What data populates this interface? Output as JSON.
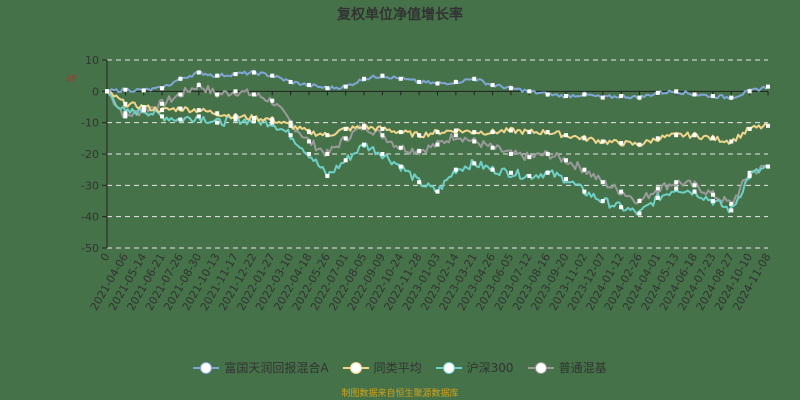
{
  "title": "复权单位净值增长率",
  "footer": "制图数据来自恒生聚源数据库",
  "y_unit": "%",
  "colors": {
    "background": "#457248",
    "fund": "#7fa6d6",
    "peer_avg": "#f0d58a",
    "csi300": "#6fd0c8",
    "mixed": "#9a9a9a",
    "grid": "#e8e8e8",
    "axis": "#222222",
    "unit": "#c0282d"
  },
  "legend": [
    {
      "label": "富国天润回报混合A",
      "color": "#7fa6d6"
    },
    {
      "label": "同类平均",
      "color": "#f0d58a"
    },
    {
      "label": "沪深300",
      "color": "#6fd0c8"
    },
    {
      "label": "普通混基",
      "color": "#9a9a9a"
    }
  ],
  "chart_data": {
    "type": "line",
    "title": "复权单位净值增长率",
    "xlabel": "",
    "ylabel": "%",
    "ylim": [
      -50,
      10
    ],
    "yticks": [
      10,
      0,
      -10,
      -20,
      -30,
      -40,
      -50
    ],
    "grid": true,
    "legend_position": "bottom",
    "categories": [
      "0",
      "2021-04-06",
      "2021-05-14",
      "2021-06-21",
      "2021-07-26",
      "2021-08-30",
      "2021-10-13",
      "2021-11-17",
      "2021-12-22",
      "2022-01-27",
      "2022-03-10",
      "2022-04-18",
      "2022-05-26",
      "2022-07-01",
      "2022-08-05",
      "2022-09-09",
      "2022-10-24",
      "2022-11-28",
      "2023-01-03",
      "2023-02-14",
      "2023-03-21",
      "2023-04-26",
      "2023-06-05",
      "2023-07-12",
      "2023-08-16",
      "2023-09-20",
      "2023-11-02",
      "2023-12-07",
      "2024-01-12",
      "2024-02-26",
      "2024-04-01",
      "2024-05-13",
      "2024-06-18",
      "2024-07-23",
      "2024-08-27",
      "2024-10-10",
      "2024-11-08"
    ],
    "series": [
      {
        "name": "富国天润回报混合A",
        "values": [
          0,
          0.5,
          0.3,
          1,
          4,
          6,
          5,
          5.5,
          6,
          5,
          3,
          2,
          1,
          1.5,
          4,
          5,
          4,
          3,
          2.5,
          3,
          4,
          2,
          1,
          0,
          -1,
          -1.5,
          -1,
          -2,
          -1.5,
          -2,
          -0.5,
          0,
          -1,
          -1.5,
          -2,
          0,
          1.5
        ]
      },
      {
        "name": "同类平均",
        "values": [
          0,
          -4,
          -5,
          -6,
          -5.5,
          -6,
          -7,
          -8,
          -8.5,
          -9,
          -11,
          -13,
          -14,
          -12,
          -11.5,
          -12,
          -13,
          -14,
          -13,
          -12.5,
          -13,
          -13,
          -12.5,
          -13,
          -13,
          -14,
          -15,
          -16,
          -16.5,
          -17,
          -15,
          -14,
          -14,
          -15,
          -16,
          -12,
          -11
        ]
      },
      {
        "name": "沪深300",
        "values": [
          0,
          -7,
          -6,
          -8,
          -9,
          -8,
          -10,
          -9,
          -9.5,
          -10,
          -14,
          -20,
          -27,
          -22,
          -17,
          -20,
          -24,
          -29,
          -32,
          -25,
          -23,
          -25,
          -26,
          -27,
          -26,
          -28,
          -32,
          -35,
          -37,
          -39,
          -34,
          -31,
          -32,
          -35,
          -38,
          -27,
          -24
        ]
      },
      {
        "name": "普通混基",
        "values": [
          0,
          -8,
          -6,
          -4,
          -1,
          2,
          -1,
          0,
          -1,
          -3,
          -10,
          -16,
          -20,
          -15,
          -11,
          -14,
          -18,
          -19,
          -17,
          -14,
          -16,
          -18,
          -20,
          -21,
          -20,
          -22,
          -25,
          -29,
          -32,
          -35,
          -31,
          -29,
          -30,
          -33,
          -36,
          -26,
          -24
        ]
      }
    ]
  }
}
